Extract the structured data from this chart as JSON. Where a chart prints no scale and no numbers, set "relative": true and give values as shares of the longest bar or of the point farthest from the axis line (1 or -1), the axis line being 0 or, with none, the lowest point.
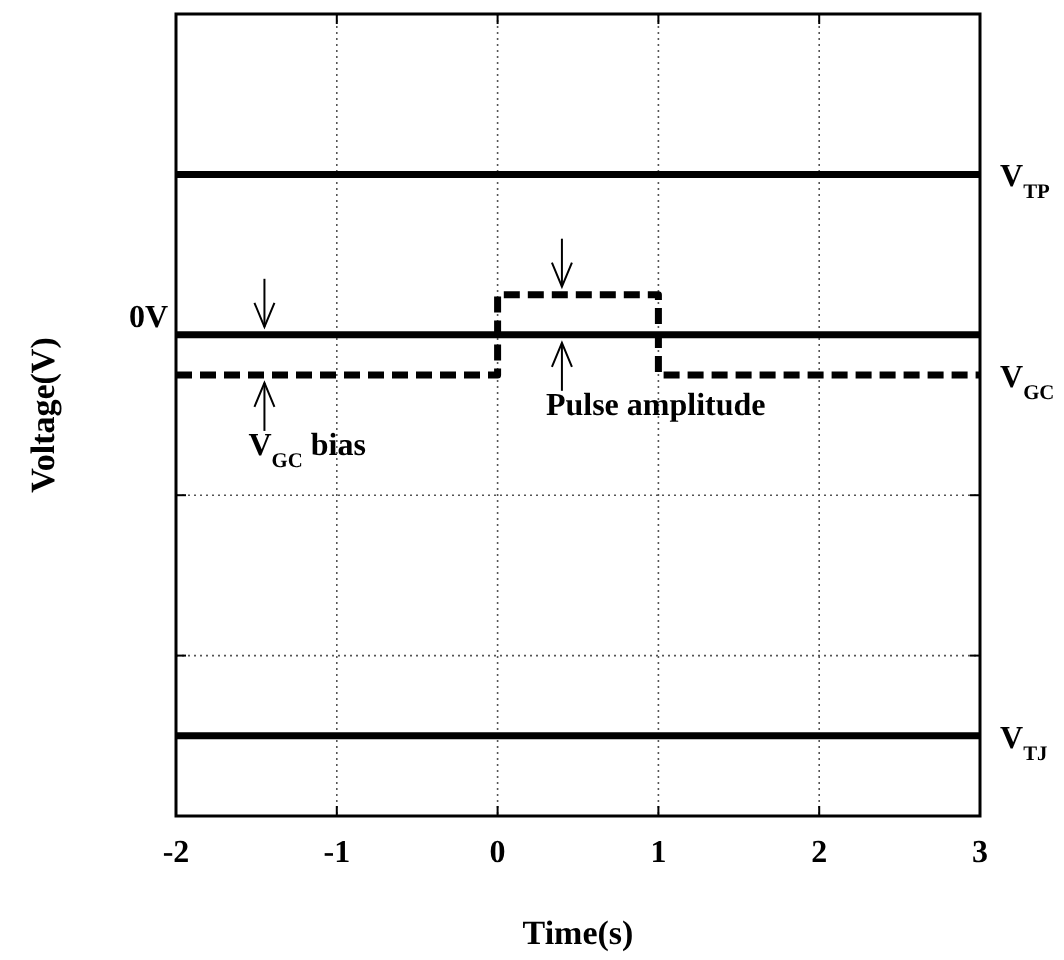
{
  "chart_data": {
    "type": "line",
    "xlabel": "Time(s)",
    "ylabel": "Voltage(V)",
    "relative": true,
    "grid": true,
    "xlim": [
      -2,
      3
    ],
    "xticks": [
      -2,
      -1,
      0,
      1,
      2,
      3
    ],
    "series": [
      {
        "name": "V$_{TP}$",
        "color": "#000000",
        "x": [
          -2,
          3
        ],
        "values": [
          0.4,
          0.4
        ]
      },
      {
        "name": "V$_{GC}$",
        "color": "#000000",
        "line_style": "dashed",
        "x": [
          -2,
          0,
          0,
          1,
          1,
          3
        ],
        "values": [
          -0.1,
          -0.1,
          0.1,
          0.1,
          -0.1,
          -0.1
        ]
      },
      {
        "name": "V$_{TJ}$",
        "color": "#000000",
        "x": [
          -2,
          3
        ],
        "values": [
          -1,
          -1
        ]
      }
    ],
    "ref_lines": [
      {
        "axis": "y",
        "value": 0,
        "label": "0V",
        "color": "#000000"
      }
    ],
    "annotations": [
      {
        "text": "V$_{GC}$ bias",
        "x": -1.45,
        "y": -0.1
      },
      {
        "text": "Pulse amplitude",
        "x": 0.4,
        "y": 0.1
      }
    ]
  }
}
